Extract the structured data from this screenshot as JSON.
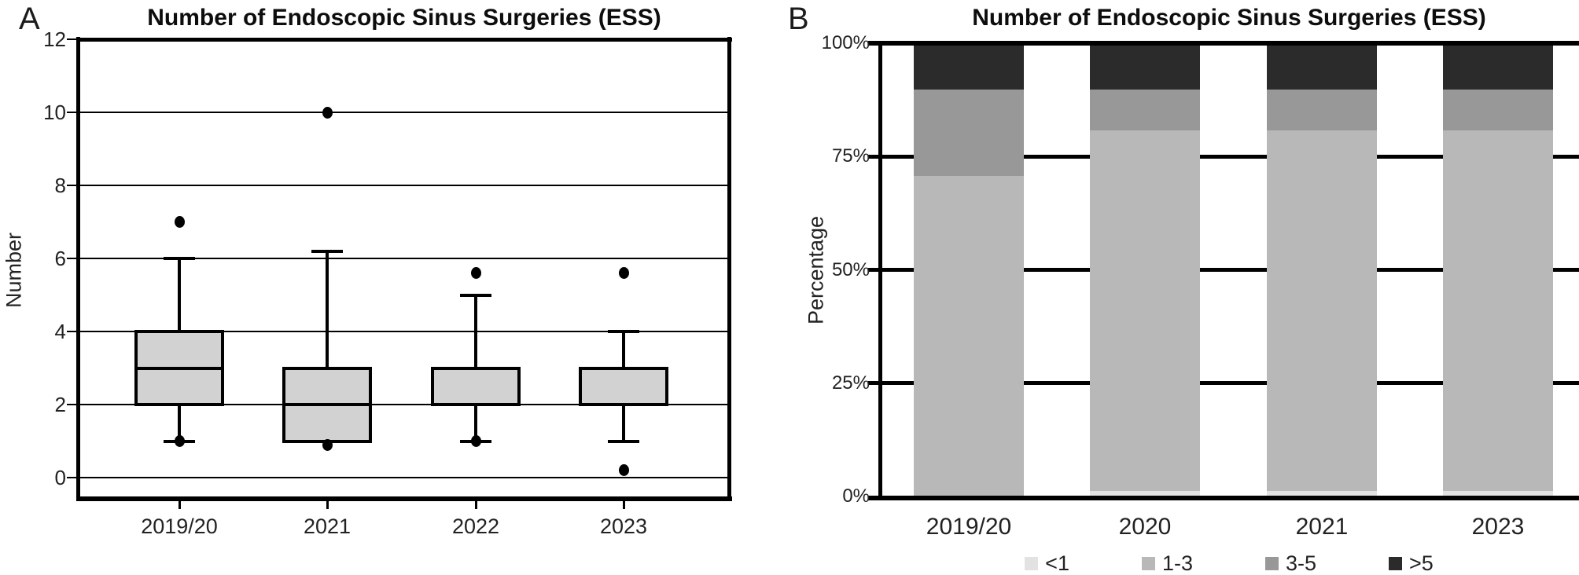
{
  "figure_kind": "two-panel statistical figure",
  "chart_data": [
    {
      "type": "boxplot",
      "panel_label": "A",
      "title": "Number of Endoscopic Sinus Surgeries (ESS)",
      "xlabel": "",
      "ylabel": "Number",
      "ylim": [
        0,
        12
      ],
      "yticks": [
        0,
        2,
        4,
        6,
        8,
        10,
        12
      ],
      "grid": "horizontal",
      "categories": [
        "2019/20",
        "2021",
        "2022",
        "2023"
      ],
      "boxes": [
        {
          "category": "2019/20",
          "q1": 2,
          "median": 3,
          "q3": 4,
          "whisker_low": 1,
          "whisker_high": 6,
          "outliers": [
            7,
            1
          ]
        },
        {
          "category": "2021",
          "q1": 1,
          "median": 2,
          "q3": 3,
          "whisker_low": null,
          "whisker_high": 6.2,
          "outliers": [
            10,
            0.9
          ]
        },
        {
          "category": "2022",
          "q1": 2,
          "median": 3,
          "q3": 3,
          "whisker_low": 1,
          "whisker_high": 5,
          "outliers": [
            5.6,
            1
          ]
        },
        {
          "category": "2023",
          "q1": 2,
          "median": 3,
          "q3": 3,
          "whisker_low": 1,
          "whisker_high": 4,
          "outliers": [
            5.6,
            0.2
          ]
        }
      ],
      "box_fill_color": "#d2d2d2",
      "line_color": "#000000"
    },
    {
      "type": "stacked_bar",
      "panel_label": "B",
      "title": "Number of Endoscopic Sinus Surgeries (ESS)",
      "xlabel": "",
      "ylabel": "Percentage",
      "ylim_percent": [
        0,
        100
      ],
      "yticks": [
        "0%",
        "25%",
        "50%",
        "75%",
        "100%"
      ],
      "ytick_values": [
        0,
        25,
        50,
        75,
        100
      ],
      "grid": "horizontal",
      "legend_position": "bottom",
      "categories": [
        "2019/20",
        "2020",
        "2021",
        "2023"
      ],
      "series": [
        {
          "name": "<1",
          "color": "#e2e2e2",
          "values": [
            0,
            1.5,
            1.5,
            1.5
          ]
        },
        {
          "name": "1-3",
          "color": "#b8b8b8",
          "values": [
            71,
            79.5,
            79.5,
            79.5
          ]
        },
        {
          "name": "3-5",
          "color": "#989898",
          "values": [
            19,
            9,
            9,
            9
          ]
        },
        {
          "name": ">5",
          "color": "#2b2b2b",
          "values": [
            10,
            10,
            10,
            10
          ]
        }
      ]
    }
  ]
}
